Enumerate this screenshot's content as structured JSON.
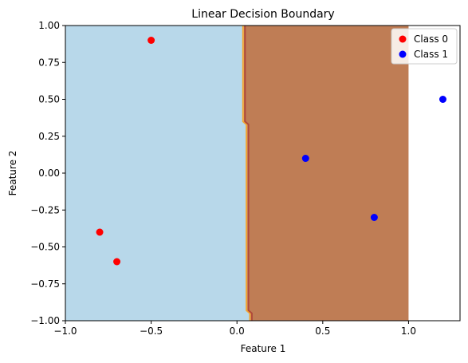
{
  "chart_data": {
    "type": "scatter",
    "title": "Linear Decision Boundary",
    "xlabel": "Feature 1",
    "ylabel": "Feature 2",
    "xlim": [
      -1.0,
      1.3
    ],
    "ylim": [
      -1.0,
      1.0
    ],
    "x_ticks": [
      -1.0,
      -0.5,
      0.0,
      0.5,
      1.0
    ],
    "x_tick_labels": [
      "−1.0",
      "−0.5",
      "0.0",
      "0.5",
      "1.0"
    ],
    "y_ticks": [
      -1.0,
      -0.75,
      -0.5,
      -0.25,
      0.0,
      0.25,
      0.5,
      0.75,
      1.0
    ],
    "y_tick_labels": [
      "−1.00",
      "−0.75",
      "−0.50",
      "−0.25",
      "0.00",
      "0.25",
      "0.50",
      "0.75",
      "1.00"
    ],
    "grid": false,
    "legend_position": "top-right",
    "decision_regions": {
      "x_range": [
        -1.0,
        1.0
      ],
      "y_range": [
        -1.0,
        1.0
      ],
      "boundary": [
        [
          0.04,
          1.0
        ],
        [
          0.04,
          0.35
        ],
        [
          0.06,
          0.33
        ],
        [
          0.06,
          -0.93
        ],
        [
          0.08,
          -0.95
        ],
        [
          0.08,
          -1.0
        ]
      ],
      "left_color": "#b8d8ea",
      "right_color": "#bf7d55",
      "edge_color_left": "#f2a533",
      "edge_color_right": "#b04a3a"
    },
    "series": [
      {
        "name": "Class 0",
        "color": "#ff0000",
        "points": [
          [
            -0.5,
            0.9
          ],
          [
            -0.8,
            -0.4
          ],
          [
            -0.7,
            -0.6
          ]
        ]
      },
      {
        "name": "Class 1",
        "color": "#0000ff",
        "points": [
          [
            0.4,
            0.1
          ],
          [
            0.8,
            -0.3
          ],
          [
            1.2,
            0.5
          ]
        ]
      }
    ]
  }
}
